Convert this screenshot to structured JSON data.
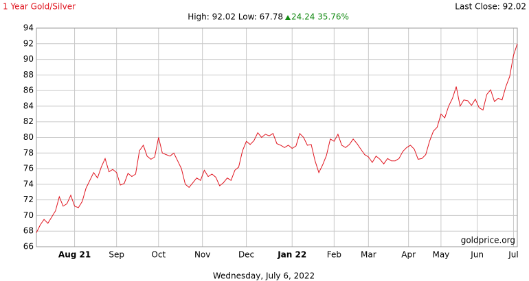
{
  "chart_data": {
    "type": "line",
    "title": "1 Year Gold/Silver",
    "last_close": "Last Close: 92.02",
    "stats": "High: 92.02 Low: 67.78",
    "change": "24.24 35.76%",
    "date": "Wednesday, July 6, 2022",
    "watermark": "goldprice.org",
    "color": "#e0141e",
    "grid": true,
    "xlim": [
      0,
      252
    ],
    "xticks": [
      {
        "value": 20,
        "label": "Aug 21"
      },
      {
        "value": 42,
        "label": "Sep"
      },
      {
        "value": 64,
        "label": "Oct"
      },
      {
        "value": 87,
        "label": "Nov"
      },
      {
        "value": 110,
        "label": "Dec"
      },
      {
        "value": 134,
        "label": "Jan 22"
      },
      {
        "value": 156,
        "label": "Feb"
      },
      {
        "value": 174,
        "label": "Mar"
      },
      {
        "value": 195,
        "label": "Apr"
      },
      {
        "value": 212,
        "label": "May"
      },
      {
        "value": 231,
        "label": "Jun"
      },
      {
        "value": 250,
        "label": "Jul"
      }
    ],
    "ylim": [
      66,
      94
    ],
    "yticks": [
      66,
      68,
      70,
      72,
      74,
      76,
      78,
      80,
      82,
      84,
      86,
      88,
      90,
      92,
      94
    ],
    "x": [
      0,
      2,
      4,
      6,
      8,
      10,
      12,
      14,
      16,
      18,
      20,
      22,
      24,
      26,
      28,
      30,
      32,
      34,
      36,
      38,
      40,
      42,
      44,
      46,
      48,
      50,
      52,
      54,
      56,
      58,
      60,
      62,
      64,
      66,
      68,
      70,
      72,
      74,
      76,
      78,
      80,
      82,
      84,
      86,
      88,
      90,
      92,
      94,
      96,
      98,
      100,
      102,
      104,
      106,
      108,
      110,
      112,
      114,
      116,
      118,
      120,
      122,
      124,
      126,
      128,
      130,
      132,
      134,
      136,
      138,
      140,
      142,
      144,
      146,
      148,
      150,
      152,
      154,
      156,
      158,
      160,
      162,
      164,
      166,
      168,
      170,
      172,
      174,
      176,
      178,
      180,
      182,
      184,
      186,
      188,
      190,
      192,
      194,
      196,
      198,
      200,
      202,
      204,
      206,
      208,
      210,
      212,
      214,
      216,
      218,
      220,
      222,
      224,
      226,
      228,
      230,
      232,
      234,
      236,
      238,
      240,
      242,
      244,
      246,
      248,
      250,
      252
    ],
    "values": [
      67.8,
      68.8,
      69.5,
      69.0,
      69.8,
      70.6,
      72.4,
      71.2,
      71.5,
      72.6,
      71.2,
      71.0,
      71.8,
      73.5,
      74.5,
      75.5,
      74.8,
      76.2,
      77.3,
      75.6,
      75.9,
      75.5,
      73.9,
      74.1,
      75.4,
      75.0,
      75.3,
      78.3,
      79.0,
      77.6,
      77.2,
      77.5,
      80.0,
      78.0,
      77.8,
      77.6,
      78.0,
      77.0,
      76.0,
      74.0,
      73.6,
      74.2,
      74.8,
      74.5,
      75.8,
      75.0,
      75.3,
      74.9,
      73.8,
      74.2,
      74.8,
      74.5,
      75.8,
      76.2,
      78.3,
      79.5,
      79.1,
      79.6,
      80.6,
      80.0,
      80.4,
      80.2,
      80.5,
      79.2,
      79.0,
      78.7,
      79.0,
      78.6,
      78.9,
      80.5,
      80.0,
      79.0,
      79.1,
      77.0,
      75.5,
      76.5,
      77.7,
      79.8,
      79.5,
      80.4,
      79.0,
      78.7,
      79.1,
      79.8,
      79.2,
      78.5,
      77.8,
      77.5,
      76.8,
      77.6,
      77.2,
      76.6,
      77.3,
      77.0,
      77.0,
      77.3,
      78.2,
      78.7,
      79.0,
      78.5,
      77.2,
      77.3,
      77.8,
      79.5,
      80.8,
      81.3,
      83.0,
      82.5,
      84.0,
      85.0,
      86.5,
      84.0,
      84.8,
      84.7,
      84.1,
      84.9,
      83.8,
      83.5,
      85.5,
      86.1,
      84.6,
      85.0,
      84.8,
      86.5,
      87.8,
      90.5,
      92.0
    ]
  }
}
